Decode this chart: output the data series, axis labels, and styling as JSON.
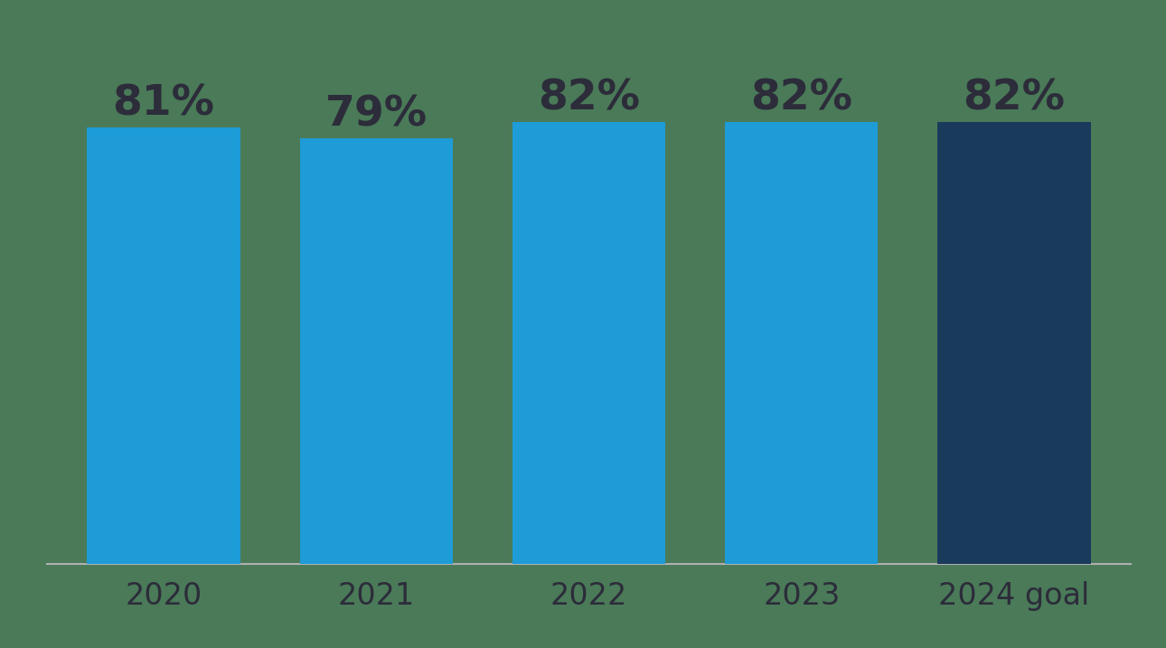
{
  "categories": [
    "2020",
    "2021",
    "2022",
    "2023",
    "2024 goal"
  ],
  "values": [
    81,
    79,
    82,
    82,
    82
  ],
  "labels": [
    "81%",
    "79%",
    "82%",
    "82%",
    "82%"
  ],
  "bar_colors": [
    "#1E9CD7",
    "#1E9CD7",
    "#1E9CD7",
    "#1E9CD7",
    "#1A3A5C"
  ],
  "background_color": "#4A7A58",
  "label_color": "#2C2C3A",
  "tick_color": "#2C2C3A",
  "label_fontsize": 34,
  "tick_fontsize": 24,
  "ylim": [
    0,
    95
  ],
  "bar_width": 0.72,
  "spine_color": "#B0B0B0"
}
